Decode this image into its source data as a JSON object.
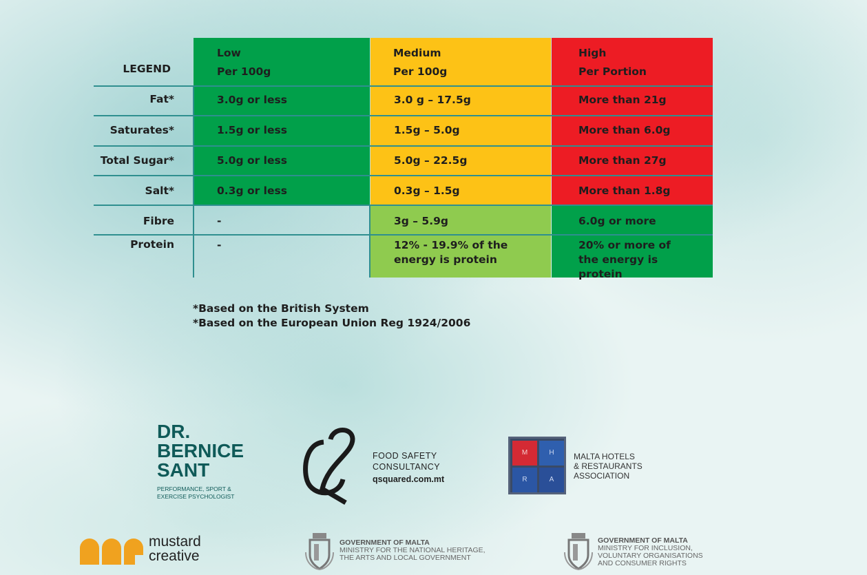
{
  "legend": {
    "title": "LEGEND",
    "columns": [
      {
        "name": "Low",
        "basis": "Per 100g"
      },
      {
        "name": "Medium",
        "basis": "Per 100g"
      },
      {
        "name": "High",
        "basis": "Per Portion"
      }
    ],
    "rows": [
      {
        "label": "Fat*",
        "low": "3.0g or less",
        "medium": "3.0 g – 17.5g",
        "high": "More than 21g"
      },
      {
        "label": "Saturates*",
        "low": "1.5g or less",
        "medium": "1.5g – 5.0g",
        "high": "More than 6.0g"
      },
      {
        "label": "Total Sugar*",
        "low": "5.0g or less",
        "medium": "5.0g – 22.5g",
        "high": "More than 27g"
      },
      {
        "label": "Salt*",
        "low": "0.3g or less",
        "medium": "0.3g – 1.5g",
        "high": "More than 1.8g"
      },
      {
        "label": "Fibre",
        "low": "-",
        "medium": "3g – 5.9g",
        "high": "6.0g or more"
      },
      {
        "label": "Protein",
        "low": "-",
        "medium": "12% - 19.9% of the energy is protein",
        "high": "20% or more of the energy is protein"
      }
    ],
    "colors": {
      "green": "#01a04a",
      "amber": "#fdc216",
      "red": "#ed1c24",
      "light_green": "#8fcb4f",
      "rule": "#2f8f8f"
    }
  },
  "footnotes": [
    "*Based on the British System",
    "*Based on the European Union Reg 1924/2006"
  ],
  "logos": {
    "sant": {
      "name": "DR. BERNICE SANT",
      "line1": "DR.",
      "line2": "BERNICE",
      "line3": "SANT",
      "tag1": "PERFORMANCE, SPORT &",
      "tag2": "EXERCISE PSYCHOLOGIST"
    },
    "q2": {
      "line1": "FOOD SAFETY",
      "line2": "CONSULTANCY",
      "url": "qsquared.com.mt"
    },
    "mhra": {
      "letters": [
        "M",
        "H",
        "R",
        "A"
      ],
      "line1": "MALTA HOTELS",
      "line2": "& RESTAURANTS",
      "line3": "ASSOCIATION"
    },
    "mustard": {
      "line1": "mustard",
      "line2": "creative"
    },
    "gov1": {
      "line1": "GOVERNMENT OF MALTA",
      "line2": "MINISTRY FOR THE NATIONAL HERITAGE,",
      "line3": "THE ARTS AND LOCAL GOVERNMENT"
    },
    "gov2": {
      "line1": "GOVERNMENT OF MALTA",
      "line2": "MINISTRY FOR INCLUSION,",
      "line3": "VOLUNTARY ORGANISATIONS",
      "line4": "AND CONSUMER RIGHTS"
    }
  }
}
